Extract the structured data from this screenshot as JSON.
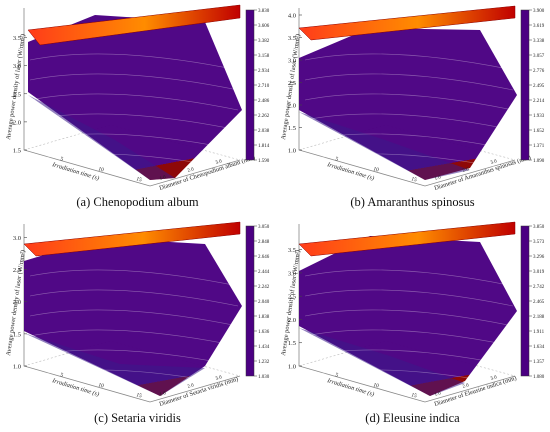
{
  "colormap": [
    "#4b0082",
    "#2a2ad8",
    "#00bfff",
    "#00d27f",
    "#bfe600",
    "#ffe600",
    "#ff8c00",
    "#ff2a00",
    "#e00000",
    "#8b0000"
  ],
  "chart_data": [
    {
      "type": "surface-3d",
      "caption": "(a) Chenopodium album",
      "zlabel": "Average power density of laser (W/mm²)",
      "xlabel": "Irradiation time (s)",
      "ylabel": "Diameter of Chenopodium album (mm)",
      "zticks": [
        "1.5",
        "2.0",
        "2.5",
        "3.0",
        "3.5"
      ],
      "zlim": [
        1.5,
        3.9
      ],
      "xticks": [
        "5",
        "10",
        "15"
      ],
      "yticks": [
        "1.0",
        "2.0",
        "3.0"
      ],
      "colorbar": [
        "3.830",
        "3.606",
        "3.382",
        "3.158",
        "2.934",
        "2.710",
        "2.486",
        "2.262",
        "2.038",
        "1.814",
        "1.590"
      ]
    },
    {
      "type": "surface-3d",
      "caption": "(b) Amaranthus spinosus",
      "zlabel": "Average power density of laser (W/mm²)",
      "xlabel": "Irradiation time (s)",
      "ylabel": "Diameter of Amaranthus spinosus (mm)",
      "zticks": [
        "1.0",
        "1.5",
        "2.0",
        "2.5",
        "3.0",
        "3.5",
        "4.0"
      ],
      "zlim": [
        1.0,
        4.0
      ],
      "xticks": [
        "5",
        "10",
        "15"
      ],
      "yticks": [
        "1.0",
        "2.0",
        "3.0"
      ],
      "colorbar": [
        "3.900",
        "3.619",
        "3.338",
        "3.057",
        "2.776",
        "2.495",
        "2.214",
        "1.933",
        "1.652",
        "1.371",
        "1.090"
      ]
    },
    {
      "type": "surface-3d",
      "caption": "(c) Setaria viridis",
      "zlabel": "Average power density of laser (W/mm²)",
      "xlabel": "Irradiation time (s)",
      "ylabel": "Diameter of Setaria viridis (mm)",
      "zticks": [
        "1.0",
        "1.5",
        "2.0",
        "2.5",
        "3.0"
      ],
      "zlim": [
        1.0,
        3.1
      ],
      "xticks": [
        "5",
        "10",
        "15"
      ],
      "yticks": [
        "1.0",
        "2.0",
        "3.0"
      ],
      "colorbar": [
        "3.050",
        "2.848",
        "2.646",
        "2.444",
        "2.242",
        "2.040",
        "1.838",
        "1.636",
        "1.434",
        "1.232",
        "1.030"
      ]
    },
    {
      "type": "surface-3d",
      "caption": "(d) Eleusine indica",
      "zlabel": "Average power density of laser (W/mm²)",
      "xlabel": "Irradiation time (s)",
      "ylabel": "Diameter of Eleusine indica (mm)",
      "zticks": [
        "1.0",
        "1.5",
        "2.0",
        "2.5",
        "3.0",
        "3.5"
      ],
      "zlim": [
        1.0,
        3.9
      ],
      "xticks": [
        "5",
        "10",
        "15"
      ],
      "yticks": [
        "1.0",
        "2.0",
        "3.0"
      ],
      "colorbar": [
        "3.850",
        "3.573",
        "3.296",
        "3.019",
        "2.742",
        "2.465",
        "2.188",
        "1.911",
        "1.634",
        "1.357",
        "1.080"
      ]
    }
  ]
}
